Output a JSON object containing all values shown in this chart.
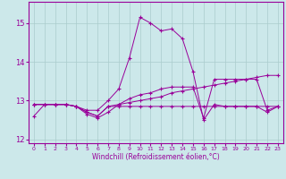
{
  "xlabel": "Windchill (Refroidissement éolien,°C)",
  "bg_color": "#cce8ea",
  "grid_color": "#aacccc",
  "line_color": "#990099",
  "hours": [
    0,
    1,
    2,
    3,
    4,
    5,
    6,
    7,
    8,
    9,
    10,
    11,
    12,
    13,
    14,
    15,
    16,
    17,
    18,
    19,
    20,
    21,
    22,
    23
  ],
  "ya": [
    12.6,
    12.9,
    12.9,
    12.9,
    12.85,
    12.75,
    12.75,
    13.0,
    13.3,
    14.1,
    15.15,
    15.0,
    14.8,
    14.85,
    14.6,
    13.75,
    12.5,
    12.9,
    12.85,
    12.85,
    12.85,
    12.85,
    12.7,
    12.85
  ],
  "yb": [
    12.9,
    12.9,
    12.9,
    12.9,
    12.85,
    12.7,
    12.6,
    12.85,
    12.85,
    12.85,
    12.85,
    12.85,
    12.85,
    12.85,
    12.85,
    12.85,
    12.85,
    12.85,
    12.85,
    12.85,
    12.85,
    12.85,
    12.85,
    12.85
  ],
  "yc": [
    12.9,
    12.9,
    12.9,
    12.9,
    12.85,
    12.7,
    12.6,
    12.85,
    12.9,
    12.95,
    13.0,
    13.05,
    13.1,
    13.2,
    13.25,
    13.3,
    13.35,
    13.4,
    13.45,
    13.5,
    13.55,
    13.6,
    13.65,
    13.65
  ],
  "yd": [
    12.9,
    12.9,
    12.9,
    12.9,
    12.85,
    12.65,
    12.55,
    12.7,
    12.9,
    13.05,
    13.15,
    13.2,
    13.3,
    13.35,
    13.35,
    13.35,
    12.55,
    13.55,
    13.55,
    13.55,
    13.55,
    13.55,
    12.75,
    12.85
  ],
  "ylim": [
    11.9,
    15.55
  ],
  "yticks": [
    12,
    13,
    14,
    15
  ],
  "xlim": [
    -0.5,
    23.5
  ]
}
